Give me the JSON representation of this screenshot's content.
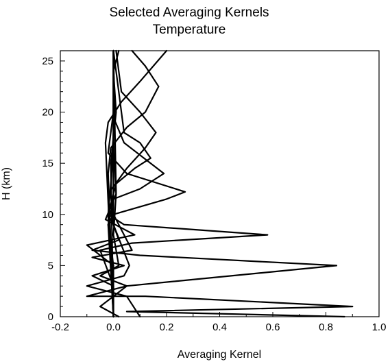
{
  "chart_data": {
    "type": "line",
    "title_line1": "Selected Averaging Kernels",
    "title_line2": "Temperature",
    "xlabel": "Averaging  Kernel",
    "ylabel": "H (km)",
    "xlim": [
      -0.2,
      1.0
    ],
    "ylim": [
      0,
      26
    ],
    "x_ticks": [
      -0.2,
      0.0,
      0.2,
      0.4,
      0.6,
      0.8,
      1.0
    ],
    "x_tick_labels": [
      "-0.2",
      "0.0",
      "0.2",
      "0.4",
      "0.6",
      "0.8",
      "1.0"
    ],
    "y_ticks": [
      0,
      5,
      10,
      15,
      20,
      25
    ],
    "y_tick_labels": [
      "0",
      "5",
      "10",
      "15",
      "20",
      "25"
    ],
    "grid": false,
    "line_color": "#000000",
    "series": [
      {
        "x": [
          0.87,
          0.05,
          0.9,
          0.12,
          -0.1,
          0.05,
          -0.05,
          0.02,
          0.0,
          0.01,
          0.0,
          0.0,
          0.0
        ],
        "y": [
          0.0,
          0.5,
          1.0,
          2.0,
          2.0,
          3.0,
          4.0,
          5.0,
          8.0,
          12.0,
          17.0,
          22.0,
          26.0
        ]
      },
      {
        "x": [
          0.1,
          0.05,
          -0.1,
          0.04,
          0.06,
          0.0,
          0.0,
          0.0,
          0.0
        ],
        "y": [
          0.0,
          2.0,
          3.0,
          4.0,
          5.0,
          9.0,
          14.0,
          20.0,
          26.0
        ]
      },
      {
        "x": [
          0.02,
          -0.05,
          0.0,
          0.05,
          0.84,
          0.1,
          -0.08,
          0.02,
          0.0,
          -0.01,
          0.0,
          0.0
        ],
        "y": [
          0.0,
          1.0,
          2.0,
          3.0,
          5.0,
          6.0,
          6.5,
          7.5,
          9.0,
          12.0,
          18.0,
          26.0
        ]
      },
      {
        "x": [
          0.0,
          -0.08,
          0.04,
          -0.08,
          0.07,
          0.0,
          0.0,
          0.0
        ],
        "y": [
          3.0,
          4.0,
          5.0,
          5.8,
          6.5,
          10.0,
          17.0,
          26.0
        ]
      },
      {
        "x": [
          0.0,
          0.0,
          -0.05,
          0.07,
          0.58,
          0.04,
          -0.02,
          0.0,
          0.0
        ],
        "y": [
          0.0,
          3.0,
          6.5,
          7.2,
          8.0,
          9.0,
          10.0,
          16.0,
          26.0
        ]
      },
      {
        "x": [
          0.0,
          -0.1,
          0.08,
          -0.03,
          0.01,
          0.0
        ],
        "y": [
          5.0,
          7.0,
          8.0,
          9.5,
          12.0,
          26.0
        ]
      },
      {
        "x": [
          0.0,
          0.0,
          -0.02,
          0.0,
          0.2,
          0.27,
          0.05,
          -0.02,
          0.0,
          0.0
        ],
        "y": [
          0.0,
          5.0,
          9.0,
          10.0,
          11.5,
          12.2,
          14.0,
          16.0,
          20.0,
          26.0
        ]
      },
      {
        "x": [
          0.0,
          -0.02,
          0.0,
          0.1,
          0.19,
          0.14,
          0.04,
          0.0,
          0.0
        ],
        "y": [
          0.0,
          9.0,
          11.5,
          12.5,
          14.0,
          15.0,
          17.0,
          19.5,
          26.0
        ]
      },
      {
        "x": [
          0.0,
          -0.02,
          0.01,
          0.08,
          0.14,
          0.1,
          0.04,
          0.0
        ],
        "y": [
          0.0,
          10.0,
          13.0,
          14.5,
          15.5,
          17.0,
          18.0,
          26.0
        ]
      },
      {
        "x": [
          0.0,
          -0.02,
          0.05,
          0.12,
          0.16,
          0.1,
          0.03,
          0.01
        ],
        "y": [
          0.0,
          12.0,
          14.5,
          16.5,
          18.0,
          20.0,
          22.0,
          26.0
        ]
      },
      {
        "x": [
          0.0,
          -0.02,
          -0.01,
          0.05,
          0.12,
          0.17,
          0.12,
          0.07
        ],
        "y": [
          0.0,
          14.0,
          16.5,
          18.5,
          20.0,
          22.5,
          24.5,
          26.0
        ]
      },
      {
        "x": [
          0.0,
          -0.03,
          -0.02,
          0.03,
          0.1,
          0.2
        ],
        "y": [
          0.0,
          17.0,
          19.0,
          21.0,
          23.0,
          26.0
        ]
      },
      {
        "x": [
          0.0,
          -0.01,
          0.01,
          0.0,
          0.02
        ],
        "y": [
          0.0,
          15.0,
          20.0,
          24.0,
          26.0
        ]
      }
    ]
  }
}
